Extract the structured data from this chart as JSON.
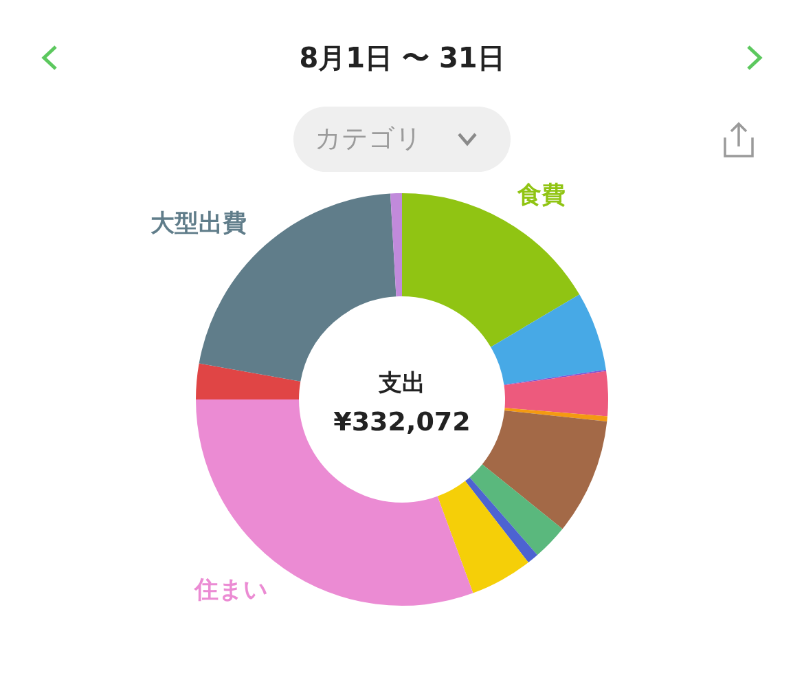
{
  "chart_data": {
    "type": "donut",
    "title": "8月1日 〜 31日",
    "subtitle": "カテゴリ",
    "categories": [
      "食費",
      null,
      null,
      null,
      null,
      null,
      null,
      null,
      null,
      "住まい",
      null,
      "大型出費",
      null
    ],
    "values": [
      16.5,
      6.2,
      0.1,
      3.5,
      0.4,
      9.1,
      2.8,
      0.9,
      4.9,
      30.6,
      2.8,
      21.3,
      0.9
    ],
    "colors": [
      "#90c413",
      "#47a9e6",
      "#7b52d6",
      "#ed5a7d",
      "#f39a12",
      "#a36947",
      "#5ab87d",
      "#4d63d1",
      "#f5cf08",
      "#eb8bd3",
      "#e04545",
      "#607d8a",
      "#c18adb"
    ],
    "annotations": [
      "支出",
      "¥332,072"
    ]
  }
}
